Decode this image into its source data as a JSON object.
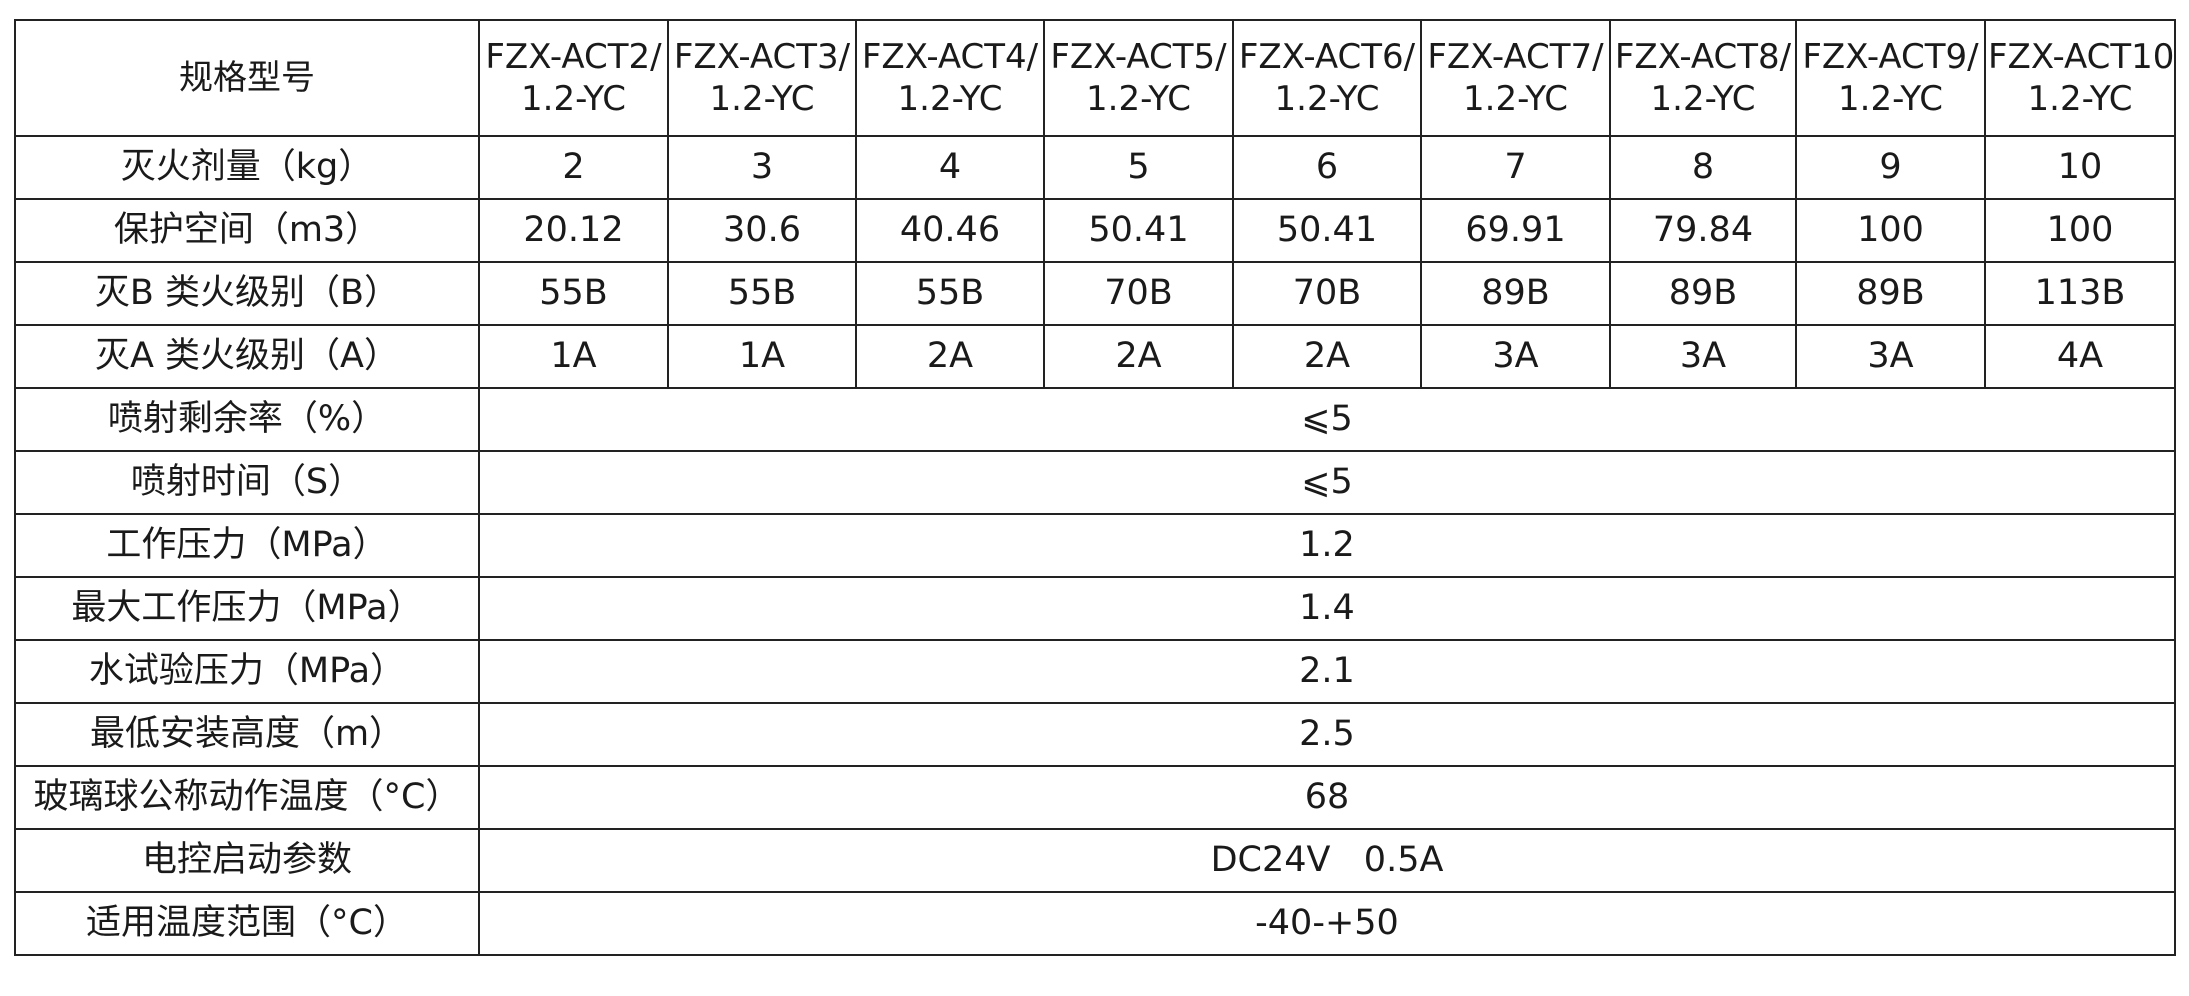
{
  "table": {
    "header_label": "规格型号",
    "models": [
      {
        "line1": "FZX-ACT2/",
        "line2": "1.2-YC"
      },
      {
        "line1": "FZX-ACT3/",
        "line2": "1.2-YC"
      },
      {
        "line1": "FZX-ACT4/",
        "line2": "1.2-YC"
      },
      {
        "line1": "FZX-ACT5/",
        "line2": "1.2-YC"
      },
      {
        "line1": "FZX-ACT6/",
        "line2": "1.2-YC"
      },
      {
        "line1": "FZX-ACT7/",
        "line2": "1.2-YC"
      },
      {
        "line1": "FZX-ACT8/",
        "line2": "1.2-YC"
      },
      {
        "line1": "FZX-ACT9/",
        "line2": "1.2-YC"
      },
      {
        "line1": "FZX-ACT10/",
        "line2": "1.2-YC"
      }
    ],
    "per_model_rows": [
      {
        "label": "灭火剂量（kg）",
        "values": [
          "2",
          "3",
          "4",
          "5",
          "6",
          "7",
          "8",
          "9",
          "10"
        ]
      },
      {
        "label": "保护空间（m3）",
        "values": [
          "20.12",
          "30.6",
          "40.46",
          "50.41",
          "50.41",
          "69.91",
          "79.84",
          "100",
          "100"
        ]
      },
      {
        "label": "灭B 类火级别（B）",
        "values": [
          "55B",
          "55B",
          "55B",
          "70B",
          "70B",
          "89B",
          "89B",
          "89B",
          "113B"
        ]
      },
      {
        "label": "灭A 类火级别（A）",
        "values": [
          "1A",
          "1A",
          "2A",
          "2A",
          "2A",
          "3A",
          "3A",
          "3A",
          "4A"
        ]
      }
    ],
    "common_rows": [
      {
        "label": "喷射剩余率（%）",
        "value": "⩽5"
      },
      {
        "label": "喷射时间（S）",
        "value": "⩽5"
      },
      {
        "label": "工作压力（MPa）",
        "value": "1.2"
      },
      {
        "label": "最大工作压力（MPa）",
        "value": "1.4"
      },
      {
        "label": "水试验压力（MPa）",
        "value": "2.1"
      },
      {
        "label": "最低安装高度（m）",
        "value": "2.5"
      },
      {
        "label": "玻璃球公称动作温度（°C）",
        "value": "68"
      },
      {
        "label": "电控启动参数",
        "value": "DC24V   0.5A"
      },
      {
        "label": "适用温度范围（°C）",
        "value": "-40-+50"
      }
    ]
  }
}
